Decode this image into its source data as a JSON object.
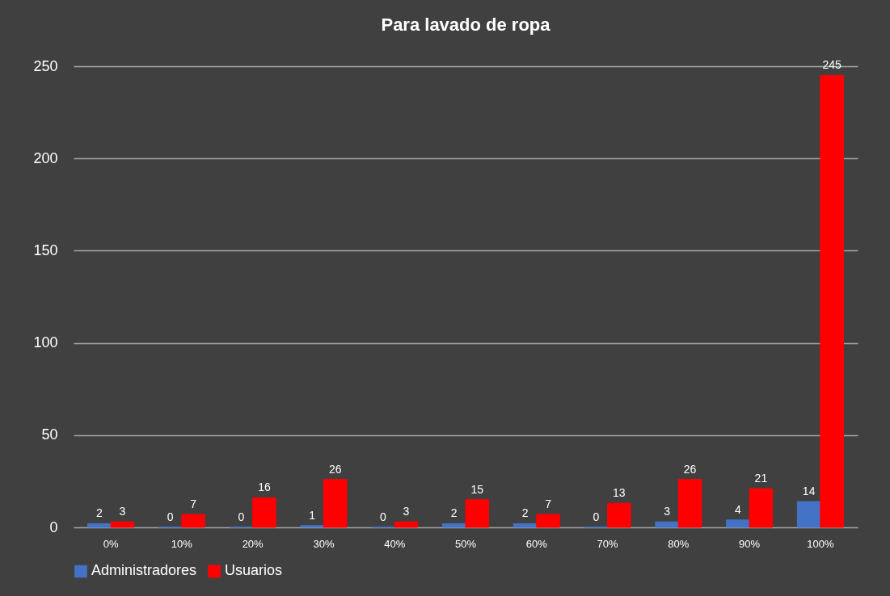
{
  "chart_data": {
    "type": "bar",
    "title": "Para lavado de ropa",
    "categories": [
      "0%",
      "10%",
      "20%",
      "30%",
      "40%",
      "50%",
      "60%",
      "70%",
      "80%",
      "90%",
      "100%"
    ],
    "series": [
      {
        "name": "Administradores",
        "color": "#4472c4",
        "values": [
          2,
          0,
          0,
          1,
          0,
          2,
          2,
          0,
          3,
          4,
          14
        ]
      },
      {
        "name": "Usuarios",
        "color": "#ff0000",
        "values": [
          3,
          7,
          16,
          26,
          3,
          15,
          7,
          13,
          26,
          21,
          245
        ]
      }
    ],
    "ylim": [
      0,
      250
    ],
    "yticks": [
      0,
      50,
      100,
      150,
      200,
      250
    ],
    "grid": "y",
    "legend": "bottom",
    "data_labels": true
  }
}
